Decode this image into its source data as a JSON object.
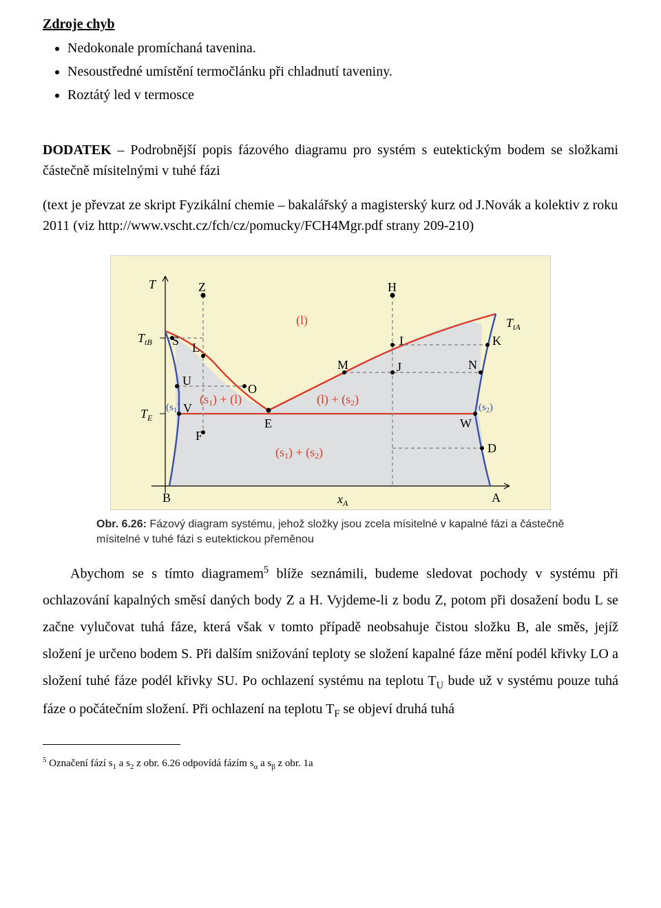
{
  "heading": "Zdroje chyb",
  "bullets": [
    "Nedokonale promíchaná tavenina.",
    "Nesoustředné umístění termočlánku při chladnutí taveniny.",
    "Roztátý led v termosce"
  ],
  "dodatek_label": "DODATEK",
  "dodatek_rest": " – Podrobnější popis fázového diagramu pro systém s eutektickým bodem se složkami částečně mísitelnými v tuhé fázi",
  "note_text": "(text je převzat ze skript Fyzikální chemie – bakalářský a magisterský kurz od J.Novák a kolektiv z roku 2011 (viz http://www.vscht.cz/fch/cz/pomucky/FCH4Mgr.pdf strany 209-210)",
  "figure": {
    "background": "#f7f3cf",
    "region_fill": "#dedfe1",
    "border_color": "#9c9aa2",
    "curve_red": "#d93b2b",
    "curve_blue": "#3a4fa6",
    "dash_color": "#8c8c8c",
    "text_color": "#000000",
    "caption_label": "Obr. 6.26:",
    "caption_text": " Fázový diagram systému, jehož složky jsou zcela mísitelné v kapalné fázi a částečně mísitelné v tuhé fázi s eutektickou přeměnou",
    "y_axis_labels": [
      "T",
      "T_tB",
      "T_E"
    ],
    "x_axis_labels": [
      "B",
      "x_A",
      "A"
    ],
    "right_labels": [
      "T_tA"
    ],
    "point_labels": [
      "Z",
      "H",
      "S",
      "L",
      "I",
      "K",
      "M",
      "J",
      "N",
      "U",
      "O",
      "V",
      "E",
      "W",
      "F",
      "D"
    ],
    "region_labels": [
      "(l)",
      "(s₁) + (l)",
      "(l) + (s₂)",
      "(s₁)",
      "(s₂)",
      "(s₁) + (s₂)"
    ]
  },
  "body_html": "Abychom se s tímto diagramem<sup>5</sup> blíže seznámili, budeme sledovat pochody v systému při ochlazování kapalných směsí daných body Z a H. Vyjdeme-li z bodu Z, potom při dosažení bodu L se začne vylučovat tuhá fáze, která však v tomto případě neobsahuje čistou složku B, ale směs, jejíž složení je určeno bodem S. Při dalším snižování teploty se složení kapalné fáze mění podél křivky LO a složení tuhé fáze podél křivky SU. Po ochlazení systému na teplotu T<sub>U</sub> bude už v systému pouze tuhá fáze o počátečním složení. Při ochlazení na teplotu T<sub>F</sub> se objeví druhá tuhá",
  "footnote_html": "<sup>5</sup> Označení fází s<sub>1</sub> a s<sub>2</sub> z obr. 6.26 odpovídá fázím s<sub>α</sub> a s<sub>β</sub> z obr. 1a"
}
